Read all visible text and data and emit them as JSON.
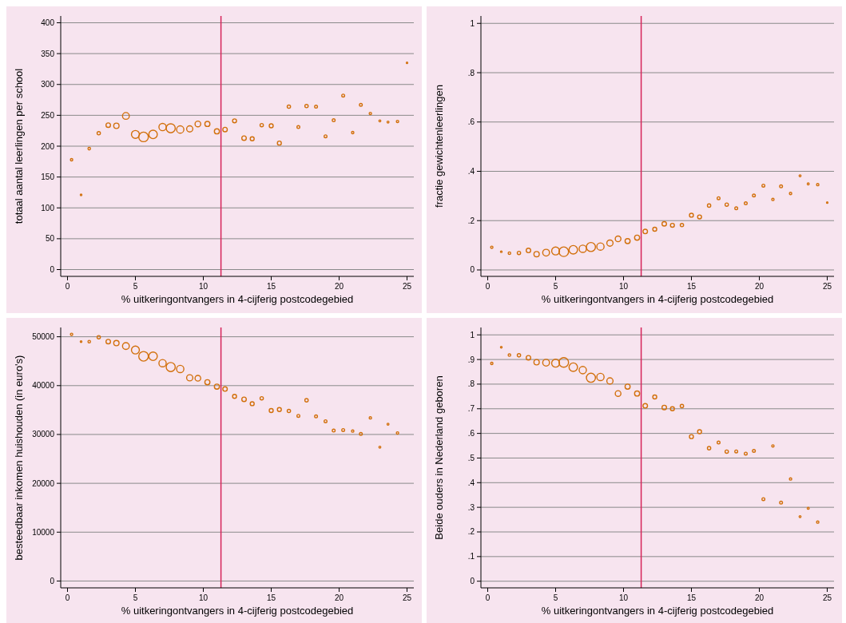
{
  "chart_data": [
    {
      "type": "bubble",
      "xlabel": "% uitkeringontvangers in 4-cijferig postcodegebied",
      "ylabel": "totaal aantal leerlingen per school",
      "xlim": [
        -0.5,
        25.5
      ],
      "xticks": [
        0,
        5,
        10,
        15,
        20,
        25
      ],
      "ylim": [
        -11,
        411
      ],
      "yticks": [
        0,
        50,
        100,
        150,
        200,
        250,
        300,
        350,
        400
      ],
      "grid": "y",
      "marker": "circle",
      "ref_lines": [
        {
          "axis": "x",
          "value": 11.3,
          "color": "#d6245a"
        }
      ],
      "series": [
        {
          "color": "#d2700c",
          "x": [
            0.3,
            1,
            1.6,
            2.3,
            3,
            3.6,
            4.3,
            5,
            5.6,
            6.3,
            7,
            7.6,
            8.3,
            9,
            9.6,
            10.3,
            11,
            11.6,
            12.3,
            13,
            13.6,
            14.3,
            15,
            15.6,
            16.3,
            17,
            17.6,
            18.3,
            19,
            19.6,
            20.3,
            21,
            21.6,
            22.3,
            23,
            23.6,
            24.3,
            25
          ],
          "values": [
            178,
            121,
            196,
            221,
            234,
            233,
            249,
            219,
            215,
            219,
            231,
            229,
            227,
            228,
            236,
            236,
            224,
            227,
            241,
            213,
            212,
            234,
            233,
            205,
            264,
            231,
            265,
            264,
            216,
            242,
            282,
            222,
            267,
            253,
            241,
            239,
            240,
            335
          ],
          "sizes": [
            0.06,
            0.03,
            0.07,
            0.12,
            0.22,
            0.31,
            0.5,
            0.68,
            1,
            0.78,
            0.58,
            0.89,
            0.58,
            0.42,
            0.35,
            0.28,
            0.28,
            0.22,
            0.17,
            0.22,
            0.17,
            0.12,
            0.17,
            0.17,
            0.12,
            0.09,
            0.12,
            0.09,
            0.09,
            0.09,
            0.09,
            0.06,
            0.09,
            0.06,
            0.04,
            0.04,
            0.06,
            0.01
          ]
        }
      ]
    },
    {
      "type": "bubble",
      "xlabel": "% uitkeringontvangers in 4-cijferig postcodegebied",
      "ylabel": "fractie gewichtenleerlingen",
      "xlim": [
        -0.5,
        25.5
      ],
      "xticks": [
        0,
        5,
        10,
        15,
        20,
        25
      ],
      "ylim": [
        -0.026,
        1.03
      ],
      "yticks": [
        0,
        {
          "value": 0.2,
          "label": ".2"
        },
        {
          "value": 0.4,
          "label": ".4"
        },
        {
          "value": 0.6,
          "label": ".6"
        },
        {
          "value": 0.8,
          "label": ".8"
        },
        1
      ],
      "grid": "y",
      "marker": "circle",
      "ref_lines": [
        {
          "axis": "x",
          "value": 11.3,
          "color": "#d6245a"
        }
      ],
      "series": [
        {
          "color": "#d2700c",
          "x": [
            0.3,
            1,
            1.6,
            2.3,
            3,
            3.6,
            4.3,
            5,
            5.6,
            6.3,
            7,
            7.6,
            8.3,
            9,
            9.6,
            10.3,
            11,
            11.6,
            12.3,
            13,
            13.6,
            14.3,
            15,
            15.6,
            16.3,
            17,
            17.6,
            18.3,
            19,
            19.6,
            20.3,
            21,
            21.6,
            22.3,
            23,
            23.6,
            24.3,
            25
          ],
          "values": [
            0.092,
            0.074,
            0.068,
            0.069,
            0.079,
            0.064,
            0.07,
            0.077,
            0.074,
            0.082,
            0.086,
            0.093,
            0.095,
            0.109,
            0.126,
            0.117,
            0.131,
            0.156,
            0.165,
            0.187,
            0.181,
            0.182,
            0.222,
            0.215,
            0.261,
            0.291,
            0.265,
            0.25,
            0.27,
            0.302,
            0.342,
            0.286,
            0.339,
            0.31,
            0.382,
            0.349,
            0.346,
            0.273
          ],
          "sizes": [
            0.06,
            0.03,
            0.07,
            0.12,
            0.22,
            0.31,
            0.5,
            0.68,
            1,
            0.78,
            0.58,
            0.89,
            0.58,
            0.42,
            0.35,
            0.28,
            0.28,
            0.22,
            0.17,
            0.22,
            0.17,
            0.12,
            0.17,
            0.17,
            0.12,
            0.09,
            0.12,
            0.09,
            0.09,
            0.09,
            0.09,
            0.06,
            0.09,
            0.06,
            0.04,
            0.04,
            0.06,
            0.01
          ]
        }
      ]
    },
    {
      "type": "bubble",
      "xlabel": "% uitkeringontvangers in 4-cijferig postcodegebied",
      "ylabel": "besteedbaar inkomen huishouden (in euro's)",
      "xlim": [
        -0.5,
        25.5
      ],
      "xticks": [
        0,
        5,
        10,
        15,
        20,
        25
      ],
      "ylim": [
        -1400,
        51900
      ],
      "yticks": [
        0,
        10000,
        20000,
        30000,
        40000,
        50000
      ],
      "grid": "y",
      "marker": "circle",
      "ref_lines": [
        {
          "axis": "x",
          "value": 11.3,
          "color": "#d6245a"
        }
      ],
      "series": [
        {
          "color": "#d2700c",
          "x": [
            0.3,
            1,
            1.6,
            2.3,
            3,
            3.6,
            4.3,
            5,
            5.6,
            6.3,
            7,
            7.6,
            8.3,
            9,
            9.6,
            10.3,
            11,
            11.6,
            12.3,
            13,
            13.6,
            14.3,
            15,
            15.6,
            16.3,
            17,
            17.6,
            18.3,
            19,
            19.6,
            20.3,
            21,
            21.6,
            22.3,
            23,
            23.6,
            24.3
          ],
          "values": [
            50500,
            49000,
            49000,
            49900,
            49000,
            48700,
            48100,
            47300,
            46000,
            46000,
            44600,
            43800,
            43400,
            41600,
            41500,
            40700,
            39800,
            39300,
            37800,
            37200,
            36300,
            37400,
            34900,
            35100,
            34800,
            33800,
            37000,
            33700,
            32700,
            30800,
            30900,
            30700,
            30100,
            33400,
            27400,
            32100,
            30300
          ],
          "sizes": [
            0.06,
            0.03,
            0.07,
            0.12,
            0.22,
            0.31,
            0.5,
            0.68,
            1,
            0.78,
            0.58,
            0.89,
            0.58,
            0.42,
            0.35,
            0.28,
            0.28,
            0.22,
            0.17,
            0.22,
            0.17,
            0.12,
            0.17,
            0.17,
            0.12,
            0.09,
            0.12,
            0.09,
            0.09,
            0.09,
            0.09,
            0.06,
            0.09,
            0.06,
            0.04,
            0.04,
            0.06
          ]
        }
      ]
    },
    {
      "type": "bubble",
      "xlabel": "% uitkeringontvangers in 4-cijferig postcodegebied",
      "ylabel": "Beide ouders in Nederland geboren",
      "xlim": [
        -0.5,
        25.5
      ],
      "xticks": [
        0,
        5,
        10,
        15,
        20,
        25
      ],
      "ylim": [
        -0.027,
        1.03
      ],
      "yticks": [
        0,
        {
          "value": 0.1,
          "label": ".1"
        },
        {
          "value": 0.2,
          "label": ".2"
        },
        {
          "value": 0.3,
          "label": ".3"
        },
        {
          "value": 0.4,
          "label": ".4"
        },
        {
          "value": 0.5,
          "label": ".5"
        },
        {
          "value": 0.6,
          "label": ".6"
        },
        {
          "value": 0.7,
          "label": ".7"
        },
        {
          "value": 0.8,
          "label": ".8"
        },
        {
          "value": 0.9,
          "label": ".9"
        },
        1
      ],
      "grid": "y",
      "marker": "circle",
      "ref_lines": [
        {
          "axis": "x",
          "value": 11.3,
          "color": "#d6245a"
        }
      ],
      "series": [
        {
          "color": "#d2700c",
          "x": [
            0.3,
            1,
            1.6,
            2.3,
            3,
            3.6,
            4.3,
            5,
            5.6,
            6.3,
            7,
            7.6,
            8.3,
            9,
            9.6,
            10.3,
            11,
            11.6,
            12.3,
            13,
            13.6,
            14.3,
            15,
            15.6,
            16.3,
            17,
            17.6,
            18.3,
            19,
            19.6,
            20.3,
            21,
            21.6,
            22.3,
            23,
            23.6,
            24.3
          ],
          "values": [
            0.884,
            0.95,
            0.918,
            0.917,
            0.907,
            0.889,
            0.887,
            0.885,
            0.888,
            0.869,
            0.857,
            0.826,
            0.829,
            0.813,
            0.762,
            0.79,
            0.762,
            0.712,
            0.748,
            0.705,
            0.7,
            0.711,
            0.587,
            0.607,
            0.54,
            0.563,
            0.526,
            0.527,
            0.518,
            0.529,
            0.333,
            0.549,
            0.319,
            0.415,
            0.262,
            0.296,
            0.24
          ],
          "sizes": [
            0.06,
            0.03,
            0.07,
            0.12,
            0.22,
            0.31,
            0.5,
            0.68,
            1,
            0.78,
            0.58,
            0.89,
            0.58,
            0.42,
            0.35,
            0.28,
            0.28,
            0.22,
            0.17,
            0.22,
            0.17,
            0.12,
            0.17,
            0.17,
            0.12,
            0.09,
            0.12,
            0.09,
            0.09,
            0.09,
            0.09,
            0.06,
            0.09,
            0.06,
            0.04,
            0.04,
            0.06
          ]
        }
      ]
    }
  ]
}
